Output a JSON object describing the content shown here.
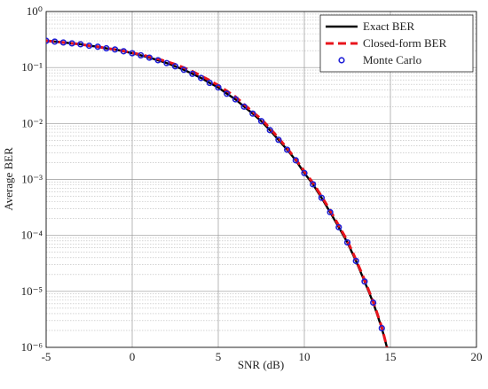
{
  "chart_data": {
    "type": "line",
    "xlabel": "SNR (dB)",
    "ylabel": "Average BER",
    "x": [
      -5,
      -4.5,
      -4,
      -3.5,
      -3,
      -2.5,
      -2,
      -1.5,
      -1,
      -0.5,
      0,
      0.5,
      1,
      1.5,
      2,
      2.5,
      3,
      3.5,
      4,
      4.5,
      5,
      5.5,
      6,
      6.5,
      7,
      7.5,
      8,
      8.5,
      9,
      9.5,
      10,
      10.5,
      11,
      11.5,
      12,
      12.5,
      13,
      13.5,
      14,
      14.5,
      14.8
    ],
    "series": [
      {
        "name": "Exact BER",
        "color": "#000000",
        "style": "solid",
        "values": [
          0.3,
          0.29,
          0.28,
          0.27,
          0.26,
          0.245,
          0.235,
          0.22,
          0.21,
          0.195,
          0.18,
          0.165,
          0.15,
          0.135,
          0.12,
          0.105,
          0.091,
          0.077,
          0.065,
          0.053,
          0.044,
          0.034,
          0.027,
          0.02,
          0.015,
          0.011,
          0.0076,
          0.0051,
          0.0034,
          0.0022,
          0.0013,
          0.00082,
          0.00047,
          0.00026,
          0.00014,
          7.5e-05,
          3.5e-05,
          1.5e-05,
          6.3e-06,
          2.2e-06,
          1e-06
        ]
      },
      {
        "name": "Closed-form BER",
        "color": "#e8141c",
        "style": "dashed",
        "values": [
          0.3,
          0.29,
          0.28,
          0.27,
          0.26,
          0.245,
          0.235,
          0.22,
          0.21,
          0.197,
          0.183,
          0.17,
          0.156,
          0.142,
          0.128,
          0.114,
          0.099,
          0.085,
          0.071,
          0.059,
          0.048,
          0.038,
          0.03,
          0.022,
          0.016,
          0.012,
          0.0082,
          0.0055,
          0.0036,
          0.0023,
          0.0014,
          0.00087,
          0.0005,
          0.00028,
          0.00015,
          8e-05,
          3.7e-05,
          1.6e-05,
          6.6e-06,
          2.3e-06,
          1e-06
        ]
      },
      {
        "name": "Monte Carlo",
        "color": "#1f1fd6",
        "style": "markers",
        "values": [
          0.3,
          0.29,
          0.28,
          0.27,
          0.26,
          0.245,
          0.235,
          0.22,
          0.21,
          0.195,
          0.18,
          0.165,
          0.15,
          0.135,
          0.12,
          0.105,
          0.091,
          0.077,
          0.065,
          0.053,
          0.044,
          0.034,
          0.027,
          0.02,
          0.015,
          0.011,
          0.0076,
          0.0051,
          0.0034,
          0.0022,
          0.0013,
          0.00082,
          0.00047,
          0.00026,
          0.00014,
          7.5e-05,
          3.5e-05,
          1.5e-05,
          6.3e-06,
          2.2e-06,
          null
        ]
      }
    ],
    "xlim": [
      -5,
      20
    ],
    "xticks": [
      -5,
      0,
      5,
      10,
      15,
      20
    ],
    "ylim": [
      1e-06,
      1
    ],
    "log_y": true,
    "yticks": [
      {
        "value": 1,
        "label": "10⁰"
      },
      {
        "value": 0.1,
        "label": "10⁻¹"
      },
      {
        "value": 0.01,
        "label": "10⁻²"
      },
      {
        "value": 0.001,
        "label": "10⁻³"
      },
      {
        "value": 0.0001,
        "label": "10⁻⁴"
      },
      {
        "value": 1e-05,
        "label": "10⁻⁵"
      },
      {
        "value": 1e-06,
        "label": "10⁻⁶"
      }
    ],
    "grid": true,
    "legend": "upper right"
  }
}
